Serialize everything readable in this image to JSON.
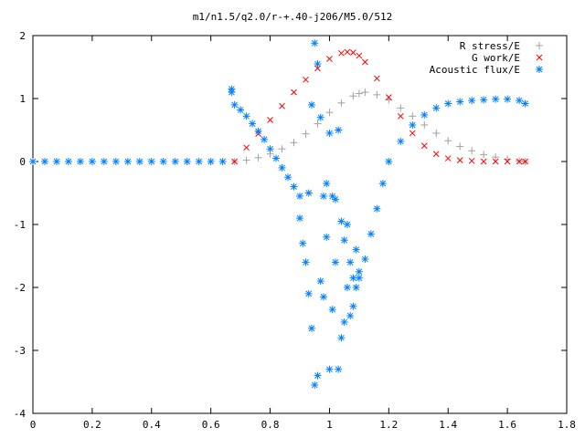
{
  "chart_data": {
    "type": "scatter",
    "title": "m1/n1.5/q2.0/r-+.40-j206/M5.0/512",
    "xlabel": "",
    "ylabel": "",
    "xlim": [
      0,
      1.8
    ],
    "ylim": [
      -4,
      2
    ],
    "xticks": [
      "0",
      "0.2",
      "0.4",
      "0.6",
      "0.8",
      "1",
      "1.2",
      "1.4",
      "1.6",
      "1.8"
    ],
    "yticks": [
      "2",
      "1",
      "0",
      "-1",
      "-2",
      "-3",
      "-4"
    ],
    "legend_position": "top-right",
    "grid": false,
    "series": [
      {
        "name": "R stress/E",
        "marker": "+",
        "color": "#a0a0a0",
        "x": [
          0.68,
          0.72,
          0.76,
          0.8,
          0.84,
          0.88,
          0.92,
          0.96,
          1.0,
          1.04,
          1.08,
          1.1,
          1.12,
          1.16,
          1.2,
          1.24,
          1.28,
          1.32,
          1.36,
          1.4,
          1.44,
          1.48,
          1.52,
          1.56,
          1.6,
          1.64,
          1.66
        ],
        "y": [
          0.0,
          0.02,
          0.06,
          0.12,
          0.2,
          0.3,
          0.44,
          0.6,
          0.78,
          0.93,
          1.04,
          1.08,
          1.1,
          1.06,
          0.98,
          0.85,
          0.72,
          0.58,
          0.45,
          0.33,
          0.24,
          0.17,
          0.11,
          0.07,
          0.04,
          0.01,
          0.0
        ]
      },
      {
        "name": "G work/E",
        "marker": "x",
        "color": "#ff0000",
        "x": [
          0.68,
          0.72,
          0.76,
          0.8,
          0.84,
          0.88,
          0.92,
          0.96,
          1.0,
          1.04,
          1.06,
          1.08,
          1.1,
          1.12,
          1.16,
          1.2,
          1.24,
          1.28,
          1.32,
          1.36,
          1.4,
          1.44,
          1.48,
          1.52,
          1.56,
          1.6,
          1.64,
          1.66
        ],
        "y": [
          0.0,
          0.22,
          0.44,
          0.66,
          0.88,
          1.1,
          1.3,
          1.48,
          1.63,
          1.72,
          1.74,
          1.73,
          1.68,
          1.58,
          1.32,
          1.02,
          0.72,
          0.45,
          0.25,
          0.12,
          0.05,
          0.02,
          0.01,
          0.0,
          0.0,
          0.0,
          0.0,
          0.0
        ]
      },
      {
        "name": "Acoustic flux/E",
        "marker": "*",
        "color": "#0080ff",
        "x": [
          0.0,
          0.04,
          0.08,
          0.12,
          0.16,
          0.2,
          0.24,
          0.28,
          0.32,
          0.36,
          0.4,
          0.44,
          0.48,
          0.52,
          0.56,
          0.6,
          0.64,
          0.67,
          0.67,
          0.68,
          0.7,
          0.72,
          0.74,
          0.76,
          0.78,
          0.8,
          0.82,
          0.84,
          0.86,
          0.88,
          0.9,
          0.9,
          0.91,
          0.92,
          0.93,
          0.93,
          0.94,
          0.94,
          0.95,
          0.95,
          0.96,
          0.96,
          0.97,
          0.97,
          0.98,
          0.98,
          0.99,
          0.99,
          1.0,
          1.0,
          1.01,
          1.01,
          1.02,
          1.02,
          1.03,
          1.03,
          1.04,
          1.04,
          1.05,
          1.05,
          1.06,
          1.06,
          1.07,
          1.07,
          1.08,
          1.08,
          1.09,
          1.09,
          1.1,
          1.1,
          1.12,
          1.14,
          1.16,
          1.18,
          1.2,
          1.24,
          1.28,
          1.32,
          1.36,
          1.4,
          1.44,
          1.48,
          1.52,
          1.56,
          1.6,
          1.64,
          1.66
        ],
        "y": [
          0.0,
          0.0,
          0.0,
          0.0,
          0.0,
          0.0,
          0.0,
          0.0,
          0.0,
          0.0,
          0.0,
          0.0,
          0.0,
          0.0,
          0.0,
          0.0,
          0.0,
          1.15,
          1.1,
          0.9,
          0.82,
          0.72,
          0.6,
          0.48,
          0.35,
          0.2,
          0.05,
          -0.1,
          -0.25,
          -0.4,
          -0.55,
          -0.9,
          -1.3,
          -1.6,
          -0.5,
          -2.1,
          0.9,
          -2.65,
          1.88,
          -3.55,
          1.55,
          -3.4,
          0.7,
          -1.9,
          -0.55,
          -2.15,
          -0.35,
          -1.2,
          0.45,
          -3.3,
          -0.55,
          -2.35,
          -0.6,
          -1.6,
          0.5,
          -3.3,
          -0.95,
          -2.8,
          -1.25,
          -2.55,
          -1.0,
          -2.0,
          -1.6,
          -2.45,
          -1.85,
          -2.3,
          -1.4,
          -2.0,
          -1.85,
          -1.75,
          -1.55,
          -1.15,
          -0.75,
          -0.35,
          0.0,
          0.32,
          0.58,
          0.74,
          0.85,
          0.92,
          0.95,
          0.97,
          0.98,
          0.99,
          0.99,
          0.97,
          0.92
        ]
      }
    ]
  }
}
